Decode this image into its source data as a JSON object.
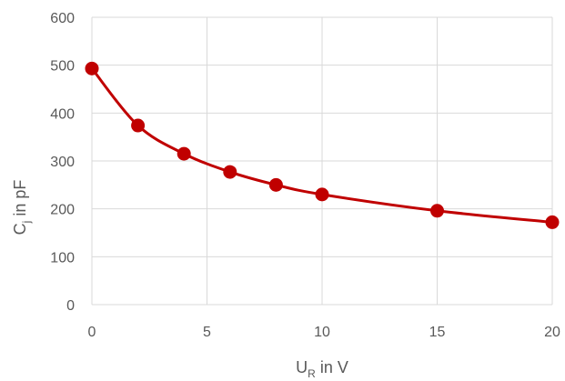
{
  "chart_data": {
    "type": "line",
    "smooth": true,
    "marker": "circle",
    "title": "",
    "xlabel": {
      "main": "U",
      "sub": "R",
      "suffix": " in V"
    },
    "ylabel": {
      "main": "C",
      "sub": "j",
      "suffix": " in pF"
    },
    "xlim": [
      0,
      20
    ],
    "ylim": [
      0,
      600
    ],
    "xticks": [
      0,
      5,
      10,
      15,
      20
    ],
    "yticks": [
      0,
      100,
      200,
      300,
      400,
      500,
      600
    ],
    "grid": true,
    "legend": "none",
    "colors": {
      "series": "#c00000",
      "grid": "#d9d9d9",
      "text": "#595959"
    },
    "series": [
      {
        "x": [
          0,
          2,
          4,
          6,
          8,
          10,
          15,
          20
        ],
        "y": [
          493,
          374,
          315,
          277,
          250,
          230,
          196,
          172
        ]
      }
    ]
  }
}
